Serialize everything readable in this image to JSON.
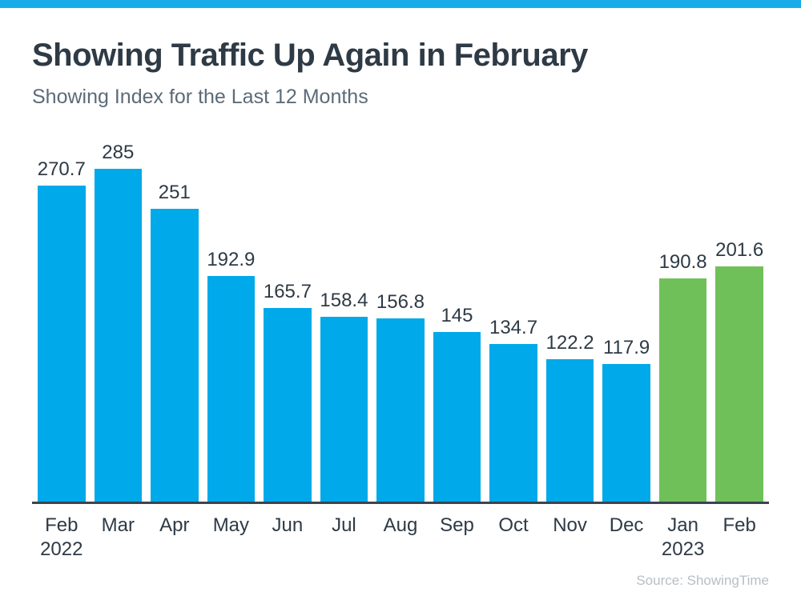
{
  "page": {
    "title": "Showing Traffic Up Again in February",
    "subtitle": "Showing Index for the Last 12 Months",
    "source": "Source: ShowingTime"
  },
  "colors": {
    "top_strip": "#19ace8",
    "bar_blue": "#00a9e9",
    "bar_green": "#70c05a",
    "axis_line": "#3a4550",
    "title_text": "#2e3a45",
    "subtitle_text": "#5c6b78",
    "label_text": "#2e3a45",
    "source_text": "#b7bec4"
  },
  "chart_data": {
    "type": "bar",
    "title": "Showing Traffic Up Again in February",
    "subtitle": "Showing Index for the Last 12 Months",
    "source": "Source: ShowingTime",
    "xlabel": "",
    "ylabel": "",
    "ylim": [
      0,
      300
    ],
    "grid": false,
    "legend": null,
    "data_labels_position": "above bars",
    "highlight_note": "Jan 2023 and Feb 2023 bars are green; all earlier months are blue",
    "categories": [
      "Feb 2022",
      "Mar",
      "Apr",
      "May",
      "Jun",
      "Jul",
      "Aug",
      "Sep",
      "Oct",
      "Nov",
      "Dec",
      "Jan 2023",
      "Feb"
    ],
    "values": [
      270.7,
      285,
      251,
      192.9,
      165.7,
      158.4,
      156.8,
      145,
      134.7,
      122.2,
      117.9,
      190.8,
      201.6
    ],
    "bars": [
      {
        "month": "Feb",
        "year": "2022",
        "value": 270.7,
        "label": "270.7",
        "color": "blue"
      },
      {
        "month": "Mar",
        "year": "",
        "value": 285,
        "label": "285",
        "color": "blue"
      },
      {
        "month": "Apr",
        "year": "",
        "value": 251,
        "label": "251",
        "color": "blue"
      },
      {
        "month": "May",
        "year": "",
        "value": 192.9,
        "label": "192.9",
        "color": "blue"
      },
      {
        "month": "Jun",
        "year": "",
        "value": 165.7,
        "label": "165.7",
        "color": "blue"
      },
      {
        "month": "Jul",
        "year": "",
        "value": 158.4,
        "label": "158.4",
        "color": "blue"
      },
      {
        "month": "Aug",
        "year": "",
        "value": 156.8,
        "label": "156.8",
        "color": "blue"
      },
      {
        "month": "Sep",
        "year": "",
        "value": 145,
        "label": "145",
        "color": "blue"
      },
      {
        "month": "Oct",
        "year": "",
        "value": 134.7,
        "label": "134.7",
        "color": "blue"
      },
      {
        "month": "Nov",
        "year": "",
        "value": 122.2,
        "label": "122.2",
        "color": "blue"
      },
      {
        "month": "Dec",
        "year": "",
        "value": 117.9,
        "label": "117.9",
        "color": "blue"
      },
      {
        "month": "Jan",
        "year": "2023",
        "value": 190.8,
        "label": "190.8",
        "color": "green"
      },
      {
        "month": "Feb",
        "year": "",
        "value": 201.6,
        "label": "201.6",
        "color": "green"
      }
    ]
  }
}
